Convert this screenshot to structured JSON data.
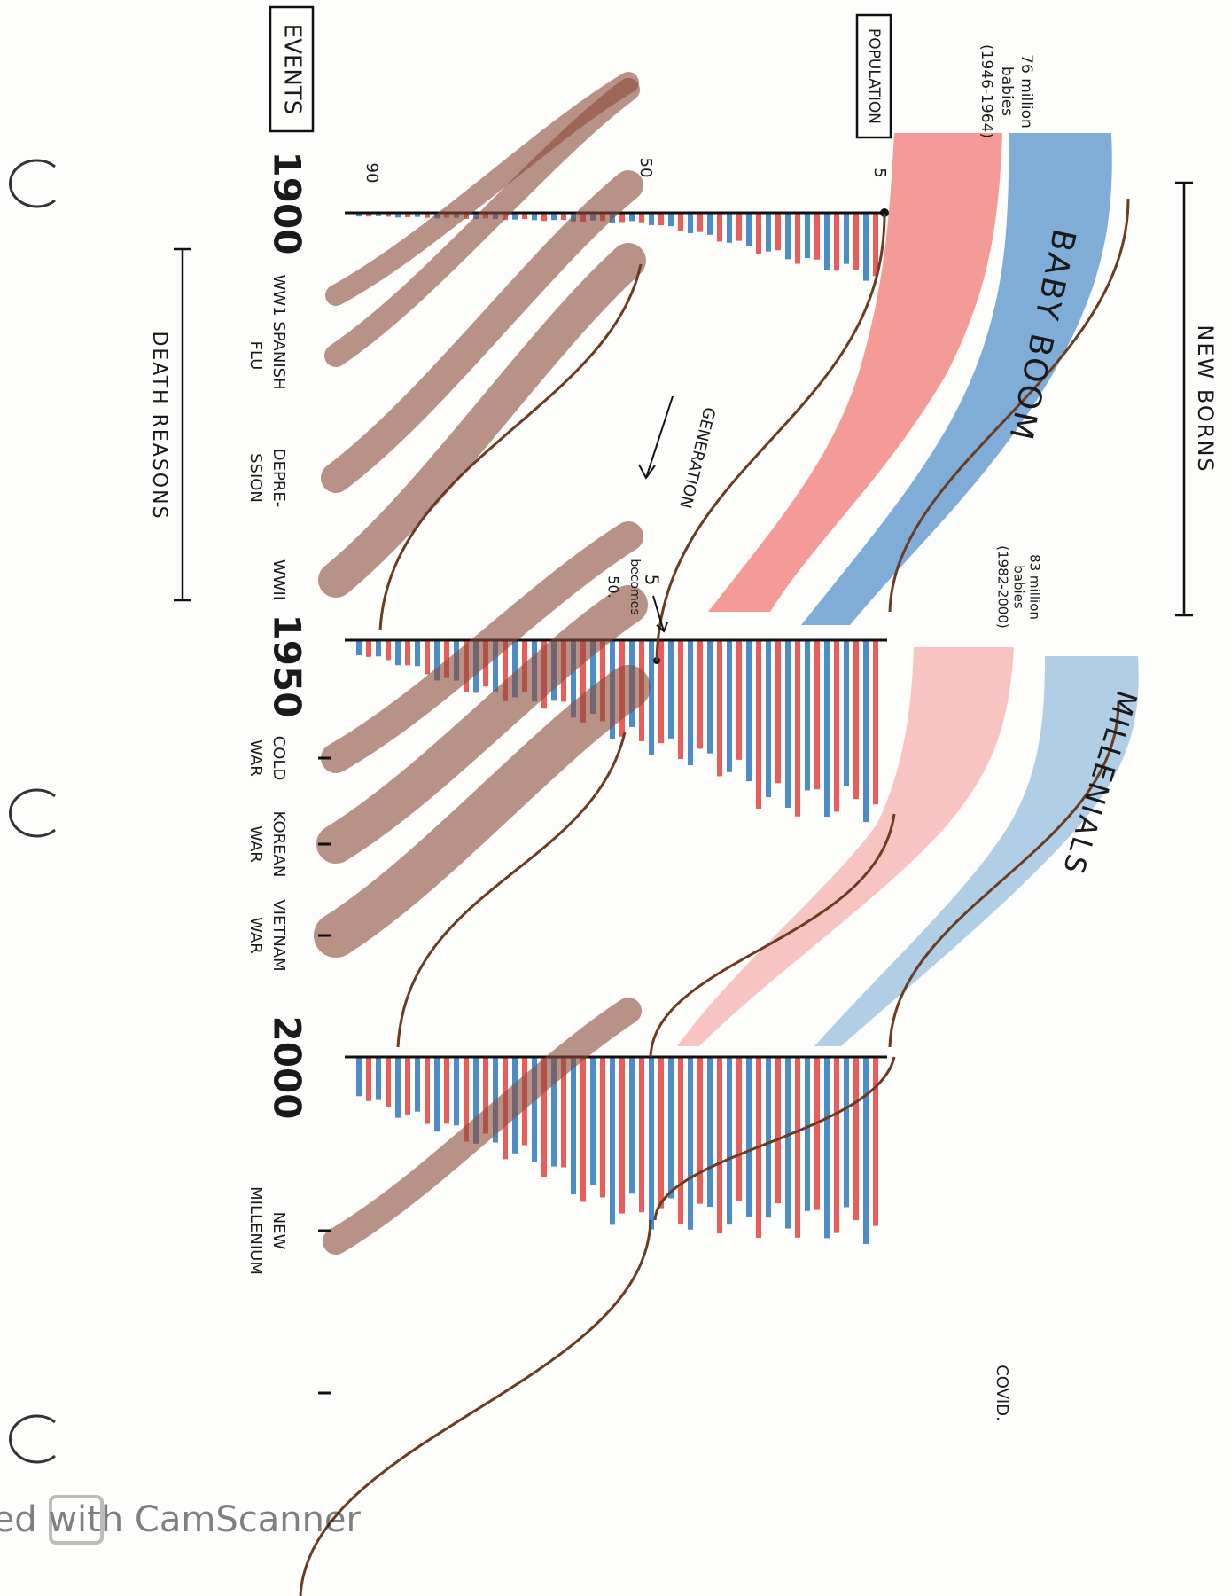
{
  "top_label": "NEW BORNS",
  "cohorts": [
    {
      "name": "BABY BOOM",
      "note": [
        "76 million",
        "babies",
        "(1946-1964)"
      ]
    },
    {
      "name": "MILLENIALS",
      "note": [
        "83 million",
        "babies",
        "(1982-2000)"
      ]
    }
  ],
  "population": {
    "label": "POPULATION",
    "ages": [
      "5",
      "50",
      "90"
    ]
  },
  "events": {
    "label": "EVENTS",
    "years": [
      "1900",
      "1950",
      "2000"
    ],
    "items": [
      [
        "WW1"
      ],
      [
        "SPANISH",
        "FLU"
      ],
      [
        "DEPRE-",
        "SSION"
      ],
      [
        "WWII"
      ],
      [
        "COLD",
        "WAR"
      ],
      [
        "KOREAN",
        "WAR"
      ],
      [
        "VIETNAM",
        "WAR"
      ],
      [
        "NEW",
        "MILLENIUM"
      ],
      [
        "COVID."
      ]
    ]
  },
  "annotations": {
    "generation": "GENERATION",
    "becomes": [
      "5",
      "becomes",
      "50."
    ]
  },
  "bottom_label": "DEATH REASONS",
  "watermark": "Scanned with CamScanner"
}
